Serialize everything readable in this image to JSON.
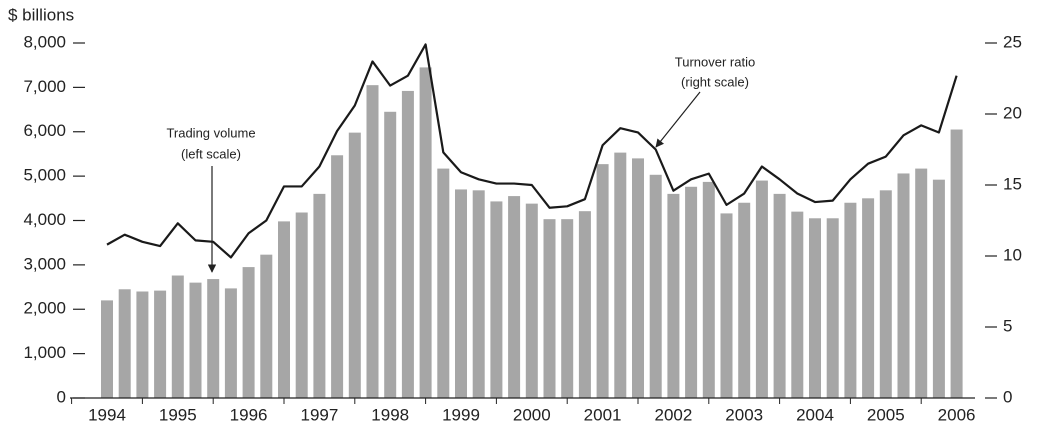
{
  "chart_data": {
    "type": "bar-line",
    "y_axis_label": "$ billions",
    "categories": [
      "1994",
      null,
      null,
      null,
      "1995",
      null,
      null,
      null,
      "1996",
      null,
      null,
      null,
      "1997",
      null,
      null,
      null,
      "1998",
      null,
      null,
      null,
      "1999",
      null,
      null,
      null,
      "2000",
      null,
      null,
      null,
      "2001",
      null,
      null,
      null,
      "2002",
      null,
      null,
      null,
      "2003",
      null,
      null,
      null,
      "2004",
      null,
      null,
      null,
      "2005",
      null,
      null,
      null,
      "2006"
    ],
    "series": [
      {
        "name": "Trading volume",
        "type": "bar",
        "axis": "y",
        "color": "#a6a6a6",
        "values": [
          2200,
          2450,
          2400,
          2420,
          2760,
          2600,
          2680,
          2470,
          2950,
          3230,
          3980,
          4180,
          4600,
          5470,
          5980,
          7050,
          6450,
          6920,
          7450,
          5170,
          4700,
          4680,
          4430,
          4550,
          4380,
          4030,
          4030,
          4210,
          5270,
          5530,
          5400,
          5030,
          4600,
          4760,
          4870,
          4160,
          4400,
          4900,
          4600,
          4200,
          4050,
          4050,
          4400,
          4500,
          4680,
          5060,
          5170,
          4920,
          6050
        ]
      },
      {
        "name": "Turnover ratio",
        "type": "line",
        "axis": "y2",
        "color": "#1a1a1a",
        "values": [
          10.8,
          11.5,
          11.0,
          10.7,
          12.3,
          11.1,
          11.0,
          9.9,
          11.6,
          12.5,
          14.9,
          14.9,
          16.3,
          18.8,
          20.6,
          23.7,
          22.0,
          22.7,
          24.9,
          17.3,
          15.9,
          15.4,
          15.1,
          15.1,
          15.0,
          13.4,
          13.5,
          14.0,
          17.8,
          19.0,
          18.7,
          17.5,
          14.6,
          15.4,
          15.8,
          13.6,
          14.4,
          16.3,
          15.4,
          14.4,
          13.8,
          13.9,
          15.4,
          16.5,
          17.0,
          18.5,
          19.2,
          18.7,
          22.7
        ]
      }
    ],
    "annotations": [
      {
        "lines": [
          "Trading volume",
          "(left scale)"
        ]
      },
      {
        "lines": [
          "Turnover ratio",
          "(right scale)"
        ]
      }
    ],
    "ylim": [
      0,
      8000
    ],
    "yticks": [
      0,
      {
        "value": 1000,
        "label": "1,000"
      },
      {
        "value": 2000,
        "label": "2,000"
      },
      {
        "value": 3000,
        "label": "3,000"
      },
      {
        "value": 4000,
        "label": "4,000"
      },
      {
        "value": 5000,
        "label": "5,000"
      },
      {
        "value": 6000,
        "label": "6,000"
      },
      {
        "value": 7000,
        "label": "7,000"
      },
      {
        "value": 8000,
        "label": "8,000"
      }
    ],
    "y2lim": [
      0,
      25
    ],
    "y2ticks": [
      0,
      5,
      10,
      15,
      20,
      25
    ],
    "grid": false
  }
}
